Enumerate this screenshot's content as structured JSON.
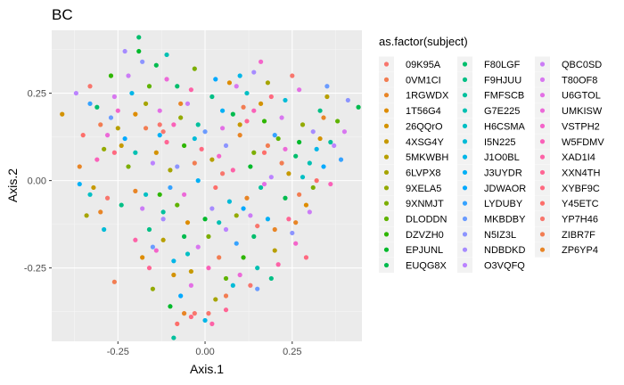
{
  "chart_data": {
    "type": "scatter",
    "title": "BC",
    "xlabel": "Axis.1",
    "ylabel": "Axis.2",
    "xlim": [
      -0.44,
      0.45
    ],
    "ylim": [
      -0.46,
      0.43
    ],
    "x_ticks": [
      -0.25,
      0.0,
      0.25
    ],
    "x_tick_labels": [
      "-0.25",
      "0.00",
      "0.25"
    ],
    "y_ticks": [
      -0.25,
      0.0,
      0.25
    ],
    "y_tick_labels": [
      "-0.25",
      "0.00",
      "0.25"
    ],
    "grid": true,
    "legend_position": "right",
    "legend_title": "as.factor(subject)",
    "series": [
      {
        "name": "09K95A",
        "color": "#F8766D",
        "points": [
          [
            -0.33,
            0.27
          ],
          [
            -0.12,
            0.14
          ],
          [
            0.05,
            0.02
          ],
          [
            0.13,
            -0.3
          ],
          [
            -0.03,
            -0.38
          ]
        ]
      },
      {
        "name": "0VM1CI",
        "color": "#F27D52",
        "points": [
          [
            -0.3,
            0.16
          ],
          [
            0.22,
            0.05
          ],
          [
            -0.26,
            -0.29
          ],
          [
            0.18,
            0.1
          ],
          [
            0.04,
            -0.22
          ]
        ]
      },
      {
        "name": "1RGWDX",
        "color": "#E88526",
        "points": [
          [
            -0.36,
            0.04
          ],
          [
            0.12,
            -0.05
          ],
          [
            -0.07,
            0.22
          ],
          [
            0.26,
            -0.12
          ],
          [
            -0.2,
            -0.03
          ]
        ]
      },
      {
        "name": "1T56G4",
        "color": "#DE8C00",
        "points": [
          [
            -0.2,
            0.19
          ],
          [
            0.07,
            0.28
          ],
          [
            -0.18,
            -0.22
          ],
          [
            0.29,
            -0.07
          ],
          [
            -0.05,
            -0.12
          ]
        ]
      },
      {
        "name": "26QQrO",
        "color": "#D39200",
        "points": [
          [
            -0.41,
            0.19
          ],
          [
            0.16,
            0.22
          ],
          [
            -0.09,
            -0.27
          ],
          [
            0.33,
            0.12
          ],
          [
            -0.14,
            0.08
          ]
        ]
      },
      {
        "name": "4XSG4Y",
        "color": "#C69900",
        "points": [
          [
            -0.32,
            -0.02
          ],
          [
            -0.04,
            -0.26
          ],
          [
            0.1,
            0.16
          ],
          [
            0.24,
            0.02
          ],
          [
            -0.24,
            0.1
          ]
        ]
      },
      {
        "name": "5MKWBH",
        "color": "#B79F00",
        "points": [
          [
            -0.25,
            0.15
          ],
          [
            0.02,
            0.06
          ],
          [
            -0.12,
            -0.17
          ],
          [
            0.2,
            -0.2
          ],
          [
            0.35,
            0.24
          ]
        ]
      },
      {
        "name": "6LVPX8",
        "color": "#A6A400",
        "points": [
          [
            -0.34,
            -0.1
          ],
          [
            -0.1,
            0.03
          ],
          [
            0.18,
            0.28
          ],
          [
            0.03,
            -0.34
          ],
          [
            -0.17,
            0.22
          ]
        ]
      },
      {
        "name": "9XELA5",
        "color": "#93AA00",
        "points": [
          [
            -0.29,
            0.09
          ],
          [
            0.09,
            -0.1
          ],
          [
            -0.07,
            0.18
          ],
          [
            0.28,
            0.16
          ],
          [
            -0.15,
            -0.31
          ]
        ]
      },
      {
        "name": "9XNMJT",
        "color": "#7CAE00",
        "points": [
          [
            -0.22,
            0.04
          ],
          [
            0.14,
            0.08
          ],
          [
            0.01,
            -0.16
          ],
          [
            -0.03,
            0.32
          ],
          [
            0.31,
            -0.02
          ]
        ]
      },
      {
        "name": "DLODDN",
        "color": "#5FB300",
        "points": [
          [
            -0.16,
            0.27
          ],
          [
            0.21,
            0.12
          ],
          [
            -0.08,
            -0.07
          ],
          [
            0.06,
            -0.28
          ],
          [
            0.38,
            0.17
          ]
        ]
      },
      {
        "name": "DZVZH0",
        "color": "#2EB600",
        "points": [
          [
            -0.27,
            0.3
          ],
          [
            0.17,
            0.17
          ],
          [
            -0.13,
            -0.04
          ],
          [
            0.11,
            -0.22
          ],
          [
            -0.06,
            0.1
          ]
        ]
      },
      {
        "name": "EPJUNL",
        "color": "#00B92A",
        "points": [
          [
            -0.19,
            0.37
          ],
          [
            0.27,
            0.11
          ],
          [
            0.0,
            -0.11
          ],
          [
            -0.1,
            -0.36
          ],
          [
            0.13,
            0.04
          ]
        ]
      },
      {
        "name": "EUQG8X",
        "color": "#00BB4E",
        "points": [
          [
            -0.14,
            0.33
          ],
          [
            0.08,
            0.19
          ],
          [
            -0.06,
            -0.16
          ],
          [
            0.23,
            -0.05
          ],
          [
            0.44,
            0.21
          ]
        ]
      },
      {
        "name": "F80LGF",
        "color": "#00BE6C",
        "points": [
          [
            -0.31,
            0.21
          ],
          [
            -0.08,
            0.27
          ],
          [
            0.14,
            -0.16
          ],
          [
            -0.19,
            0.41
          ],
          [
            0.26,
            0.07
          ]
        ]
      },
      {
        "name": "F9HJUU",
        "color": "#00BF85",
        "points": [
          [
            -0.24,
            -0.07
          ],
          [
            0.02,
            0.24
          ],
          [
            -0.16,
            -0.14
          ],
          [
            0.19,
            -0.28
          ],
          [
            0.33,
            0.2
          ]
        ]
      },
      {
        "name": "FMFSCB",
        "color": "#00C09D",
        "points": [
          [
            -0.12,
            -0.09
          ],
          [
            -0.02,
            0.16
          ],
          [
            0.16,
            -0.02
          ],
          [
            -0.09,
            -0.45
          ],
          [
            0.36,
            0.11
          ]
        ]
      },
      {
        "name": "G7E225",
        "color": "#00C0B2",
        "points": [
          [
            -0.2,
            0.08
          ],
          [
            0.04,
            -0.12
          ],
          [
            0.3,
            0.05
          ],
          [
            -0.11,
            0.36
          ],
          [
            0.15,
            -0.25
          ]
        ]
      },
      {
        "name": "H6CSMA",
        "color": "#00BFC4",
        "points": [
          [
            -0.17,
            -0.04
          ],
          [
            -0.05,
            -0.21
          ],
          [
            0.12,
            0.25
          ],
          [
            0.28,
            0.01
          ],
          [
            -0.33,
            -0.04
          ]
        ]
      },
      {
        "name": "I5N225",
        "color": "#00BBD7",
        "points": [
          [
            -0.29,
            -0.14
          ],
          [
            0.07,
            -0.06
          ],
          [
            -0.03,
            0.12
          ],
          [
            0.23,
            0.23
          ],
          [
            0.08,
            -0.3
          ]
        ]
      },
      {
        "name": "J1O0BL",
        "color": "#00B6E8",
        "points": [
          [
            -0.21,
            0.25
          ],
          [
            0.1,
            0.3
          ],
          [
            -0.09,
            -0.23
          ],
          [
            0.32,
            0.09
          ],
          [
            0.0,
            -0.4
          ]
        ]
      },
      {
        "name": "J3UYDR",
        "color": "#00B0F6",
        "points": [
          [
            -0.36,
            -0.01
          ],
          [
            -0.02,
            0.0
          ],
          [
            0.18,
            -0.11
          ],
          [
            0.05,
            0.2
          ],
          [
            -0.13,
            0.13
          ]
        ]
      },
      {
        "name": "JDWAOR",
        "color": "#00A9FF",
        "points": [
          [
            -0.23,
            0.12
          ],
          [
            0.11,
            -0.08
          ],
          [
            0.34,
            0.04
          ],
          [
            -0.07,
            -0.33
          ],
          [
            0.03,
            0.29
          ]
        ]
      },
      {
        "name": "LYDUBY",
        "color": "#35A2FF",
        "points": [
          [
            -0.33,
            0.22
          ],
          [
            -0.1,
            -0.02
          ],
          [
            0.2,
            0.13
          ],
          [
            0.39,
            0.06
          ],
          [
            0.09,
            -0.18
          ]
        ]
      },
      {
        "name": "MKBDBY",
        "color": "#6A9BFF",
        "points": [
          [
            -0.27,
            0.18
          ],
          [
            0.0,
            0.14
          ],
          [
            0.15,
            -0.31
          ],
          [
            0.35,
            0.27
          ],
          [
            -0.15,
            -0.19
          ]
        ]
      },
      {
        "name": "N5IZ3L",
        "color": "#8C94FF",
        "points": [
          [
            -0.18,
            0.34
          ],
          [
            0.06,
            0.1
          ],
          [
            0.25,
            -0.15
          ],
          [
            0.41,
            0.23
          ],
          [
            -0.08,
            0.04
          ]
        ]
      },
      {
        "name": "NDBDKD",
        "color": "#A68BFF",
        "points": [
          [
            -0.23,
            0.37
          ],
          [
            0.14,
            0.31
          ],
          [
            0.31,
            0.14
          ],
          [
            -0.12,
            -0.11
          ],
          [
            0.02,
            -0.08
          ]
        ]
      },
      {
        "name": "O3VQFQ",
        "color": "#BB83FF",
        "points": [
          [
            -0.37,
            0.25
          ],
          [
            -0.15,
            0.05
          ],
          [
            0.19,
            0.01
          ],
          [
            0.37,
            0.1
          ],
          [
            0.06,
            -0.14
          ]
        ]
      },
      {
        "name": "QBC0SD",
        "color": "#CB7CF6",
        "points": [
          [
            -0.22,
            0.3
          ],
          [
            -0.05,
            0.22
          ],
          [
            0.13,
            -0.1
          ],
          [
            0.3,
            -0.09
          ],
          [
            -0.18,
            -0.08
          ]
        ]
      },
      {
        "name": "T80OF8",
        "color": "#D877F0",
        "points": [
          [
            -0.26,
            0.24
          ],
          [
            0.09,
            0.27
          ],
          [
            -0.02,
            -0.19
          ],
          [
            0.22,
            0.18
          ],
          [
            0.4,
            0.14
          ]
        ]
      },
      {
        "name": "U6GTOL",
        "color": "#E36FE5",
        "points": [
          [
            -0.13,
            0.2
          ],
          [
            0.17,
            -0.01
          ],
          [
            0.05,
            0.15
          ],
          [
            -0.04,
            -0.3
          ],
          [
            0.27,
            0.26
          ]
        ]
      },
      {
        "name": "UMKISW",
        "color": "#EC69D8",
        "points": [
          [
            -0.28,
            0.13
          ],
          [
            -0.06,
            -0.04
          ],
          [
            0.23,
            0.09
          ],
          [
            0.1,
            -0.27
          ],
          [
            -0.11,
            0.29
          ]
        ]
      },
      {
        "name": "VSTPH2",
        "color": "#F464CA",
        "points": [
          [
            -0.14,
            -0.2
          ],
          [
            0.04,
            0.07
          ],
          [
            0.26,
            -0.18
          ],
          [
            -0.25,
            0.2
          ],
          [
            0.16,
            0.34
          ]
        ]
      },
      {
        "name": "W5FDMV",
        "color": "#FA61B9",
        "points": [
          [
            -0.31,
            0.06
          ],
          [
            0.01,
            -0.25
          ],
          [
            0.14,
            0.2
          ],
          [
            0.36,
            -0.01
          ],
          [
            -0.09,
            0.16
          ]
        ]
      },
      {
        "name": "XAD1I4",
        "color": "#FD62A7",
        "points": [
          [
            -0.2,
            -0.17
          ],
          [
            0.08,
            0.03
          ],
          [
            -0.04,
            0.26
          ],
          [
            0.21,
            -0.24
          ],
          [
            0.02,
            -0.41
          ]
        ]
      },
      {
        "name": "XXN4TH",
        "color": "#FF6594",
        "points": [
          [
            -0.11,
            0.11
          ],
          [
            0.12,
            0.17
          ],
          [
            -0.16,
            -0.25
          ],
          [
            0.24,
            -0.11
          ],
          [
            0.06,
            -0.37
          ]
        ]
      },
      {
        "name": "XYBF9C",
        "color": "#FF6980",
        "points": [
          [
            -0.26,
            0.08
          ],
          [
            -0.01,
            0.09
          ],
          [
            0.19,
            0.24
          ],
          [
            0.29,
            -0.22
          ],
          [
            -0.04,
            -0.39
          ]
        ]
      },
      {
        "name": "Y45ETC",
        "color": "#FD6E6A",
        "points": [
          [
            -0.35,
            0.13
          ],
          [
            0.03,
            -0.02
          ],
          [
            0.17,
            0.08
          ],
          [
            -0.08,
            -0.41
          ],
          [
            0.32,
            0.0
          ]
        ]
      },
      {
        "name": "YP7H46",
        "color": "#F8766D",
        "points": [
          [
            -0.28,
            -0.05
          ],
          [
            -0.13,
            0.16
          ],
          [
            0.15,
            -0.13
          ],
          [
            0.01,
            -0.38
          ],
          [
            0.25,
            0.3
          ]
        ]
      },
      {
        "name": "ZIBR7F",
        "color": "#F27D52",
        "points": [
          [
            -0.17,
            0.15
          ],
          [
            0.06,
            -0.33
          ],
          [
            0.27,
            -0.04
          ],
          [
            -0.03,
            0.05
          ],
          [
            0.11,
            0.21
          ]
        ]
      },
      {
        "name": "ZP6YP4",
        "color": "#E88526",
        "points": [
          [
            -0.3,
            -0.09
          ],
          [
            0.1,
            0.13
          ],
          [
            -0.06,
            -0.38
          ],
          [
            0.2,
            -0.14
          ],
          [
            0.34,
            0.18
          ]
        ]
      }
    ]
  }
}
